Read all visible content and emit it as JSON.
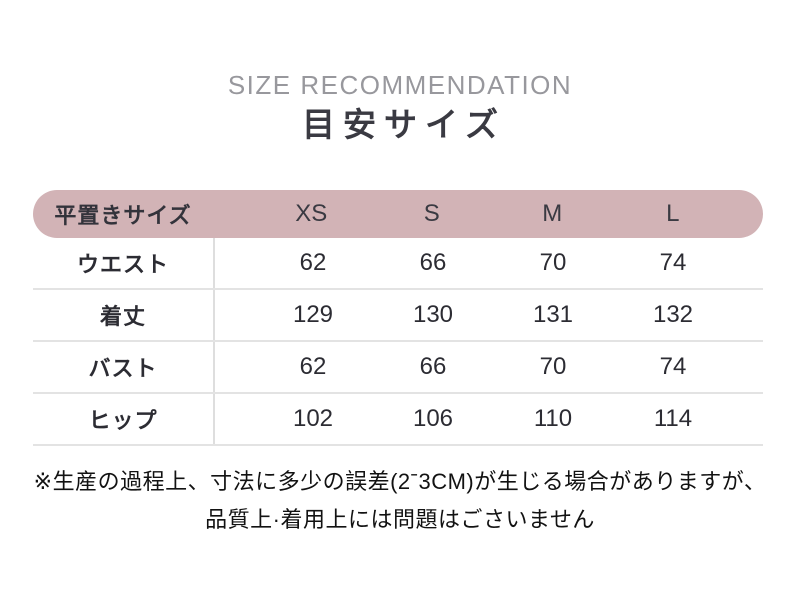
{
  "header": {
    "subtitle_en": "SIZE RECOMMENDATION",
    "title_ja": "目安サイズ"
  },
  "table": {
    "corner_label": "平置きサイズ",
    "size_headers": [
      "XS",
      "S",
      "M",
      "L"
    ],
    "rows": [
      {
        "label": "ウエスト",
        "values": [
          "62",
          "66",
          "70",
          "74"
        ]
      },
      {
        "label": "着丈",
        "values": [
          "129",
          "130",
          "131",
          "132"
        ]
      },
      {
        "label": "バスト",
        "values": [
          "62",
          "66",
          "70",
          "74"
        ]
      },
      {
        "label": "ヒップ",
        "values": [
          "102",
          "106",
          "110",
          "114"
        ]
      }
    ]
  },
  "notes": {
    "line1": "※生産の過程上、寸法に多少の誤差(2ˉ3CM)が生じる場合がありますが、",
    "line2": "品質上·着用上には問題はごさいません"
  },
  "chart_data": {
    "type": "table",
    "title": "目安サイズ (SIZE RECOMMENDATION)",
    "columns": [
      "平置きサイズ",
      "XS",
      "S",
      "M",
      "L"
    ],
    "rows": [
      [
        "ウエスト",
        62,
        66,
        70,
        74
      ],
      [
        "着丈",
        129,
        130,
        131,
        132
      ],
      [
        "バスト",
        62,
        66,
        70,
        74
      ],
      [
        "ヒップ",
        102,
        106,
        110,
        114
      ]
    ]
  },
  "colors": {
    "header_bg": "#d2b3b6",
    "subtitle_gray": "#98989d",
    "title_dark": "#3a3a42",
    "cell_text": "#2c2c33",
    "divider": "#e3e3e3"
  }
}
